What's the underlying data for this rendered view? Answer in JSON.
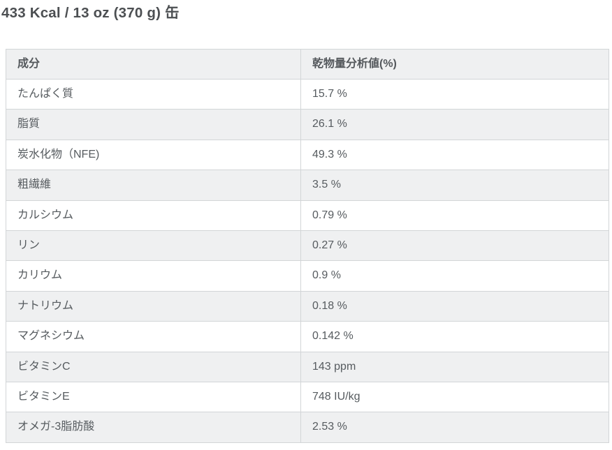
{
  "page": {
    "title": "433 Kcal / 13 oz (370 g) 缶"
  },
  "table": {
    "headers": [
      "成分",
      "乾物量分析値(%)"
    ],
    "rows": [
      {
        "label": "たんぱく質",
        "value": "15.7 %"
      },
      {
        "label": "脂質",
        "value": "26.1 %"
      },
      {
        "label": "炭水化物（NFE)",
        "value": "49.3 %"
      },
      {
        "label": "粗繊維",
        "value": "3.5 %"
      },
      {
        "label": "カルシウム",
        "value": "0.79 %"
      },
      {
        "label": "リン",
        "value": "0.27 %"
      },
      {
        "label": "カリウム",
        "value": "0.9 %"
      },
      {
        "label": "ナトリウム",
        "value": "0.18 %"
      },
      {
        "label": "マグネシウム",
        "value": "0.142 %"
      },
      {
        "label": "ビタミンC",
        "value": "143 ppm"
      },
      {
        "label": "ビタミンE",
        "value": "748 IU/kg"
      },
      {
        "label": "オメガ-3脂肪酸",
        "value": "2.53 %"
      }
    ]
  },
  "colors": {
    "header_background": "#eff0f1",
    "stripe_background": "#eff0f1",
    "border": "#d2d5d7",
    "body_text": "#565b5f",
    "title_text": "#4c4f52"
  }
}
